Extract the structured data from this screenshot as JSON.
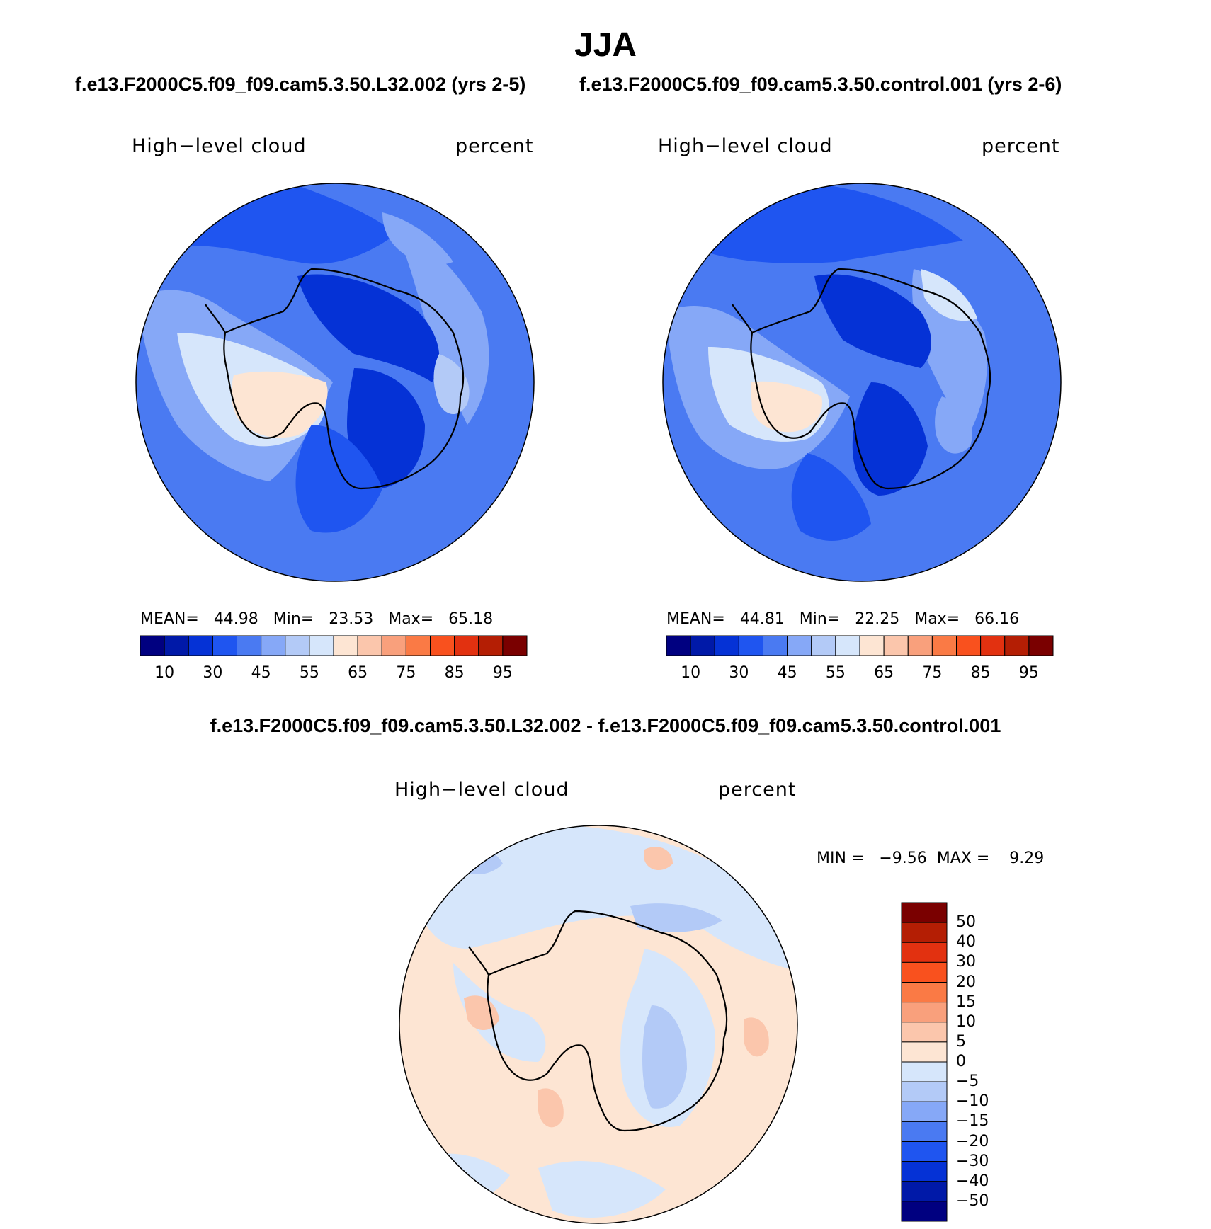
{
  "title": "JJA",
  "panels": [
    {
      "case_title": "f.e13.F2000C5.f09_f09.cam5.3.50.L32.002 (yrs 2-5)",
      "variable": "High−level cloud",
      "units": "percent",
      "mean_label": "MEAN=",
      "mean": "44.98",
      "min_label": "Min=",
      "min": "23.53",
      "max_label": "Max=",
      "max": "65.18"
    },
    {
      "case_title": "f.e13.F2000C5.f09_f09.cam5.3.50.control.001 (yrs 2-6)",
      "variable": "High−level cloud",
      "units": "percent",
      "mean_label": "MEAN=",
      "mean": "44.81",
      "min_label": "Min=",
      "min": "22.25",
      "max_label": "Max=",
      "max": "66.16"
    }
  ],
  "diff_panel": {
    "title": "f.e13.F2000C5.f09_f09.cam5.3.50.L32.002 - f.e13.F2000C5.f09_f09.cam5.3.50.control.001",
    "variable": "High−level cloud",
    "units": "percent",
    "stats": "MIN =   −9.56  MAX =    9.29"
  },
  "colorbar_abs": {
    "colors": [
      "#000080",
      "#0019a8",
      "#0532d6",
      "#1f55f0",
      "#4a7af2",
      "#86a8f7",
      "#b3caf7",
      "#d6e6fb",
      "#fde5d3",
      "#fbc6ac",
      "#f9a07c",
      "#fa7a45",
      "#f9511e",
      "#e23110",
      "#b41e04",
      "#7a0000"
    ],
    "ticks": [
      "10",
      "30",
      "45",
      "55",
      "65",
      "75",
      "85",
      "95"
    ]
  },
  "colorbar_diff": {
    "colors": [
      "#7a0000",
      "#b41e04",
      "#e23110",
      "#f9511e",
      "#fa7a45",
      "#f9a07c",
      "#fbc6ac",
      "#fde5d3",
      "#d6e6fb",
      "#b3caf7",
      "#86a8f7",
      "#4a7af2",
      "#1f55f0",
      "#0532d6",
      "#0019a8",
      "#000080"
    ],
    "ticks": [
      "50",
      "40",
      "30",
      "20",
      "15",
      "10",
      "5",
      "0",
      "−5",
      "−10",
      "−15",
      "−20",
      "−30",
      "−40",
      "−50"
    ]
  }
}
